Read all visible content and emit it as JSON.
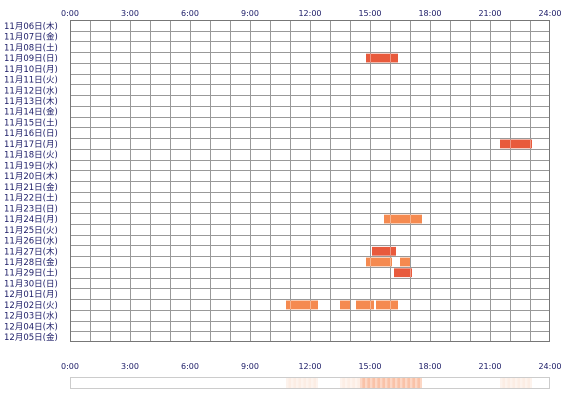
{
  "chart_data": {
    "type": "heatmap",
    "x_tick_labels": [
      "0:00",
      "3:00",
      "6:00",
      "9:00",
      "12:00",
      "15:00",
      "18:00",
      "21:00",
      "24:00"
    ],
    "xlim_hours": [
      0,
      24
    ],
    "rows": [
      "11月06日(木)",
      "11月07日(金)",
      "11月08日(土)",
      "11月09日(日)",
      "11月10日(月)",
      "11月11日(火)",
      "11月12日(水)",
      "11月13日(木)",
      "11月14日(金)",
      "11月15日(土)",
      "11月16日(日)",
      "11月17日(月)",
      "11月18日(火)",
      "11月19日(水)",
      "11月20日(木)",
      "11月21日(金)",
      "11月22日(土)",
      "11月23日(日)",
      "11月24日(月)",
      "11月25日(火)",
      "11月26日(水)",
      "11月27日(木)",
      "11月28日(金)",
      "11月29日(土)",
      "11月30日(日)",
      "12月01日(月)",
      "12月02日(火)",
      "12月03日(水)",
      "12月04日(木)",
      "12月05日(金)"
    ],
    "activity": [
      {
        "row": "11月09日(日)",
        "start": 14.8,
        "end": 16.4,
        "color": "#e85a3c"
      },
      {
        "row": "11月17日(月)",
        "start": 21.5,
        "end": 23.1,
        "color": "#e85a3c"
      },
      {
        "row": "11月24日(月)",
        "start": 15.7,
        "end": 17.6,
        "color": "#f58a50"
      },
      {
        "row": "11月27日(木)",
        "start": 15.1,
        "end": 16.3,
        "color": "#e85a3c"
      },
      {
        "row": "11月28日(金)",
        "start": 14.8,
        "end": 16.1,
        "color": "#f58a50"
      },
      {
        "row": "11月28日(金)",
        "start": 16.5,
        "end": 17.0,
        "color": "#f58a50"
      },
      {
        "row": "11月29日(土)",
        "start": 16.2,
        "end": 17.1,
        "color": "#e85a3c"
      },
      {
        "row": "12月02日(火)",
        "start": 10.8,
        "end": 12.4,
        "color": "#f58a50"
      },
      {
        "row": "12月02日(火)",
        "start": 13.5,
        "end": 14.0,
        "color": "#f58a50"
      },
      {
        "row": "12月02日(火)",
        "start": 14.3,
        "end": 15.2,
        "color": "#f58a50"
      },
      {
        "row": "12月02日(火)",
        "start": 15.3,
        "end": 16.4,
        "color": "#f58a50"
      }
    ],
    "summary_strip": [
      {
        "start": 10.8,
        "end": 12.4,
        "intensity": 0.3
      },
      {
        "start": 13.5,
        "end": 14.5,
        "intensity": 0.25
      },
      {
        "start": 14.5,
        "end": 17.6,
        "intensity": 0.55
      },
      {
        "start": 21.5,
        "end": 23.1,
        "intensity": 0.3
      }
    ],
    "grid": true,
    "colors": {
      "grid": "#999999",
      "frame": "#777777",
      "cell_background": "#ffffff",
      "strip_base": "#fbe3d6",
      "strip_strong": "#f8b08e",
      "text": "#1a1a66"
    }
  }
}
